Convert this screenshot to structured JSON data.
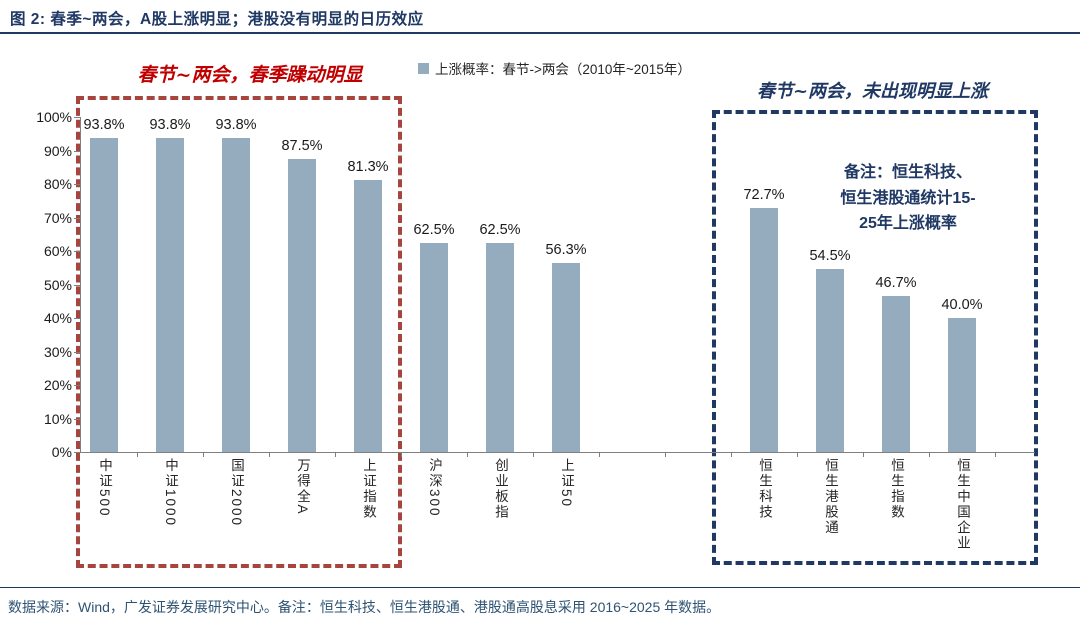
{
  "title": "图 2:  春季~两会，A股上涨明显；港股没有明显的日历效应",
  "legend": {
    "label": "上涨概率：春节->两会（2010年~2015年）",
    "marker_color": "#95ABBE"
  },
  "annotations": {
    "left_red": "春节~两会，春季躁动明显",
    "right_navy": "春节~两会，未出现明显上涨",
    "note": [
      "备注：恒生科技、",
      "恒生港股通统计15-",
      "25年上涨概率"
    ]
  },
  "chart_data": {
    "type": "bar",
    "title": "上涨概率：春节->两会（2010年~2015年）",
    "xlabel": "",
    "ylabel": "",
    "ylim": [
      0,
      100
    ],
    "grid": false,
    "legend_position": "top-center",
    "y_tick_labels": [
      "0%",
      "10%",
      "20%",
      "30%",
      "40%",
      "50%",
      "60%",
      "70%",
      "80%",
      "90%",
      "100%"
    ],
    "y_tick_values": [
      0,
      10,
      20,
      30,
      40,
      50,
      60,
      70,
      80,
      90,
      100
    ],
    "bar_color": "#95ABBE",
    "groups": [
      {
        "name": "a-share-spring-rally",
        "categories": [
          "中证500",
          "中证1000",
          "国证2000",
          "万得全A",
          "上证指数"
        ],
        "values": [
          93.8,
          93.8,
          93.8,
          87.5,
          81.3
        ],
        "labels": [
          "93.8%",
          "93.8%",
          "93.8%",
          "87.5%",
          "81.3%"
        ]
      },
      {
        "name": "a-share-other",
        "categories": [
          "沪深300",
          "创业板指",
          "上证50"
        ],
        "values": [
          62.5,
          62.5,
          56.3
        ],
        "labels": [
          "62.5%",
          "62.5%",
          "56.3%"
        ]
      },
      {
        "name": "hk-indices",
        "categories": [
          "恒生科技",
          "恒生港股通",
          "恒生指数",
          "恒生中国企业"
        ],
        "values": [
          72.7,
          54.5,
          46.7,
          40.0
        ],
        "labels": [
          "72.7%",
          "54.5%",
          "46.7%",
          "40.0%"
        ]
      }
    ]
  },
  "colors": {
    "title_navy": "#1F3864",
    "red_accent": "#C00000",
    "red_box": "#A6453D",
    "navy_box": "#1F3864",
    "bar": "#95ABBE",
    "footer_text": "#2E5373"
  },
  "footer": "数据来源：Wind，广发证券发展研究中心。备注：恒生科技、恒生港股通、港股通高股息采用 2016~2025 年数据。"
}
